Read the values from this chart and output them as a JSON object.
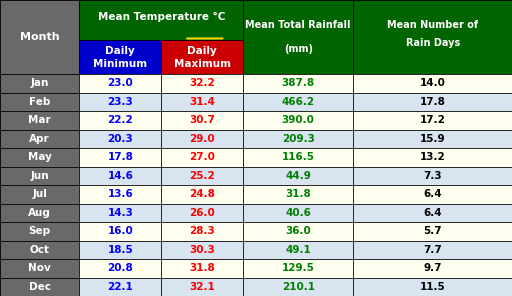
{
  "months": [
    "Jan",
    "Feb",
    "Mar",
    "Apr",
    "May",
    "Jun",
    "Jul",
    "Aug",
    "Sep",
    "Oct",
    "Nov",
    "Dec"
  ],
  "daily_min": [
    23.0,
    23.3,
    22.2,
    20.3,
    17.8,
    14.6,
    13.6,
    14.3,
    16.0,
    18.5,
    20.8,
    22.1
  ],
  "daily_max": [
    32.2,
    31.4,
    30.7,
    29.0,
    27.0,
    25.2,
    24.8,
    26.0,
    28.3,
    30.3,
    31.8,
    32.1
  ],
  "rainfall": [
    387.8,
    466.2,
    390.0,
    209.3,
    116.5,
    44.9,
    31.8,
    40.6,
    36.0,
    49.1,
    129.5,
    210.1
  ],
  "rain_days": [
    14.0,
    17.8,
    17.2,
    15.9,
    13.2,
    7.3,
    6.4,
    6.4,
    5.7,
    7.7,
    9.7,
    11.5
  ],
  "header_bg": "#006400",
  "header_text": "#FFFFFF",
  "min_col_bg": "#0000CD",
  "max_col_bg": "#CC0000",
  "month_col_bg": "#696969",
  "month_col_text": "#FFFFFF",
  "row_bg_odd": "#FFFFF0",
  "row_bg_even": "#D8E4F0",
  "min_text_color": "#0000FF",
  "max_text_color": "#FF0000",
  "rainfall_text_color": "#008000",
  "raindays_text_color": "#000000",
  "border_color": "#000000",
  "temp_superscript_color": "#FFD700",
  "underline_color": "#FFD700"
}
